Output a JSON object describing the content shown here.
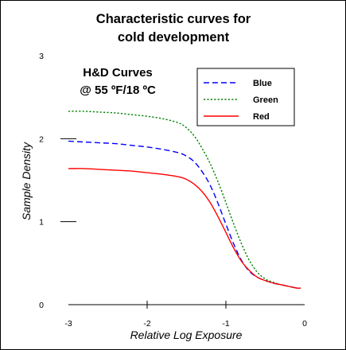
{
  "chart_data": {
    "type": "line",
    "title_line1": "Characteristic curves for",
    "title_line2": "cold development",
    "annotation_line1": "H&D Curves",
    "annotation_line2": "@ 55 ºF/18 ºC",
    "xlabel": "Relative Log Exposure",
    "ylabel": "Sample Density",
    "xlim": [
      -3,
      0
    ],
    "ylim": [
      0,
      3
    ],
    "x_ticks": [
      "-3",
      "-2",
      "-1",
      "0"
    ],
    "y_ticks": [
      "0",
      "1",
      "2",
      "3"
    ],
    "legend_position": "top-right",
    "grid": false,
    "series": [
      {
        "name": "Blue",
        "color": "#0000ff",
        "style": "dashed",
        "x": [
          -3.0,
          -2.8,
          -2.6,
          -2.4,
          -2.2,
          -2.0,
          -1.8,
          -1.6,
          -1.5,
          -1.4,
          -1.3,
          -1.2,
          -1.1,
          -1.0,
          -0.9,
          -0.8,
          -0.7,
          -0.6,
          -0.5,
          -0.4,
          -0.3,
          -0.2,
          -0.1,
          -0.05
        ],
        "y": [
          1.97,
          1.96,
          1.95,
          1.94,
          1.92,
          1.9,
          1.87,
          1.83,
          1.79,
          1.72,
          1.6,
          1.44,
          1.22,
          0.97,
          0.73,
          0.53,
          0.4,
          0.33,
          0.29,
          0.26,
          0.24,
          0.22,
          0.2,
          0.2
        ]
      },
      {
        "name": "Green",
        "color": "#008000",
        "style": "dotted",
        "x": [
          -3.0,
          -2.8,
          -2.6,
          -2.4,
          -2.2,
          -2.0,
          -1.8,
          -1.6,
          -1.5,
          -1.4,
          -1.3,
          -1.2,
          -1.1,
          -1.0,
          -0.9,
          -0.8,
          -0.7,
          -0.6,
          -0.5,
          -0.4,
          -0.3,
          -0.2,
          -0.1,
          -0.05
        ],
        "y": [
          2.33,
          2.33,
          2.32,
          2.31,
          2.29,
          2.27,
          2.24,
          2.19,
          2.13,
          2.03,
          1.88,
          1.7,
          1.48,
          1.23,
          0.97,
          0.73,
          0.53,
          0.39,
          0.31,
          0.27,
          0.24,
          0.22,
          0.2,
          0.2
        ]
      },
      {
        "name": "Red",
        "color": "#ff0000",
        "style": "solid",
        "x": [
          -3.0,
          -2.8,
          -2.6,
          -2.4,
          -2.2,
          -2.0,
          -1.8,
          -1.6,
          -1.5,
          -1.4,
          -1.3,
          -1.2,
          -1.1,
          -1.0,
          -0.9,
          -0.8,
          -0.7,
          -0.6,
          -0.5,
          -0.4,
          -0.3,
          -0.2,
          -0.1,
          -0.05
        ],
        "y": [
          1.64,
          1.64,
          1.63,
          1.62,
          1.61,
          1.59,
          1.57,
          1.54,
          1.51,
          1.45,
          1.36,
          1.23,
          1.06,
          0.87,
          0.68,
          0.52,
          0.41,
          0.33,
          0.29,
          0.26,
          0.24,
          0.22,
          0.2,
          0.2
        ]
      }
    ]
  }
}
